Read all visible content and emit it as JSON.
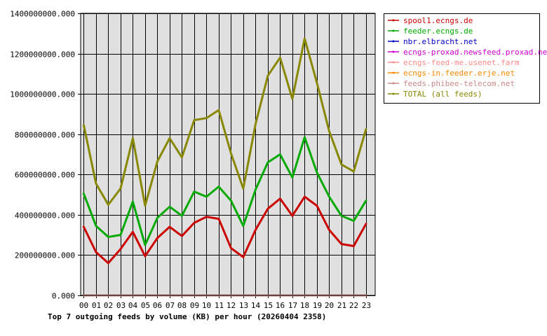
{
  "chart_data": {
    "type": "line",
    "title": "Top 7 outgoing feeds by volume (KB) per hour (20260404 2358)",
    "xlabel": "",
    "ylabel": "",
    "ylim": [
      0,
      1400000000
    ],
    "grid": true,
    "legend_placement": "top-right (outside plot)",
    "background_color": "#e0e0e0",
    "x": [
      "00",
      "01",
      "02",
      "03",
      "04",
      "05",
      "06",
      "07",
      "08",
      "09",
      "10",
      "11",
      "12",
      "13",
      "14",
      "15",
      "16",
      "17",
      "18",
      "19",
      "20",
      "21",
      "22",
      "23"
    ],
    "y_ticks": [
      {
        "value": 0,
        "label": "0.000"
      },
      {
        "value": 200000000,
        "label": "200000000.000"
      },
      {
        "value": 400000000,
        "label": "400000000.000"
      },
      {
        "value": 600000000,
        "label": "600000000.000"
      },
      {
        "value": 800000000,
        "label": "800000000.000"
      },
      {
        "value": 1000000000,
        "label": "1000000000.000"
      },
      {
        "value": 1200000000,
        "label": "1200000000.000"
      },
      {
        "value": 1400000000,
        "label": "1400000000.000"
      }
    ],
    "series": [
      {
        "name": "spool1.ecngs.de",
        "color": "#cc0000",
        "values": [
          340000000,
          215000000,
          160000000,
          230000000,
          315000000,
          195000000,
          285000000,
          340000000,
          295000000,
          360000000,
          390000000,
          380000000,
          235000000,
          190000000,
          325000000,
          430000000,
          480000000,
          395000000,
          490000000,
          445000000,
          325000000,
          255000000,
          245000000,
          355000000
        ]
      },
      {
        "name": "feeder.ecngs.de",
        "color": "#00aa00",
        "values": [
          505000000,
          345000000,
          290000000,
          300000000,
          465000000,
          250000000,
          385000000,
          440000000,
          395000000,
          515000000,
          490000000,
          540000000,
          470000000,
          345000000,
          525000000,
          660000000,
          700000000,
          585000000,
          785000000,
          610000000,
          490000000,
          395000000,
          370000000,
          470000000
        ]
      },
      {
        "name": "nbr.elbracht.net",
        "color": "#0000cc",
        "values": [
          0,
          0,
          0,
          0,
          0,
          0,
          0,
          0,
          0,
          0,
          0,
          0,
          0,
          0,
          0,
          0,
          0,
          0,
          0,
          0,
          0,
          0,
          0,
          0
        ]
      },
      {
        "name": "ecngs-proxad.newsfeed.proxad.net",
        "color": "#cc00cc",
        "values": [
          0,
          0,
          0,
          0,
          0,
          0,
          0,
          0,
          0,
          0,
          0,
          0,
          0,
          0,
          0,
          0,
          0,
          0,
          0,
          0,
          0,
          0,
          0,
          0
        ]
      },
      {
        "name": "ecngs-feed-me.usenet.farm",
        "color": "#ff8888",
        "values": [
          0,
          0,
          0,
          0,
          0,
          0,
          0,
          0,
          0,
          0,
          0,
          0,
          0,
          0,
          0,
          0,
          0,
          0,
          0,
          0,
          0,
          0,
          0,
          0
        ]
      },
      {
        "name": "ecngs-in.feeder.erje.net",
        "color": "#ff8800",
        "values": [
          0,
          0,
          0,
          0,
          0,
          0,
          0,
          0,
          0,
          0,
          0,
          0,
          0,
          0,
          0,
          0,
          0,
          0,
          0,
          0,
          0,
          0,
          0,
          0
        ]
      },
      {
        "name": "feeds.phibee-telecom.net",
        "color": "#cc8888",
        "values": [
          0,
          0,
          0,
          0,
          0,
          0,
          0,
          0,
          0,
          0,
          0,
          0,
          0,
          0,
          0,
          0,
          0,
          0,
          0,
          0,
          0,
          0,
          0,
          0
        ]
      },
      {
        "name": "TOTAL (all feeds)",
        "color": "#888800",
        "values": [
          845000000,
          555000000,
          450000000,
          530000000,
          780000000,
          445000000,
          665000000,
          780000000,
          685000000,
          870000000,
          880000000,
          920000000,
          705000000,
          530000000,
          850000000,
          1090000000,
          1180000000,
          975000000,
          1275000000,
          1055000000,
          815000000,
          650000000,
          615000000,
          825000000
        ]
      }
    ]
  }
}
